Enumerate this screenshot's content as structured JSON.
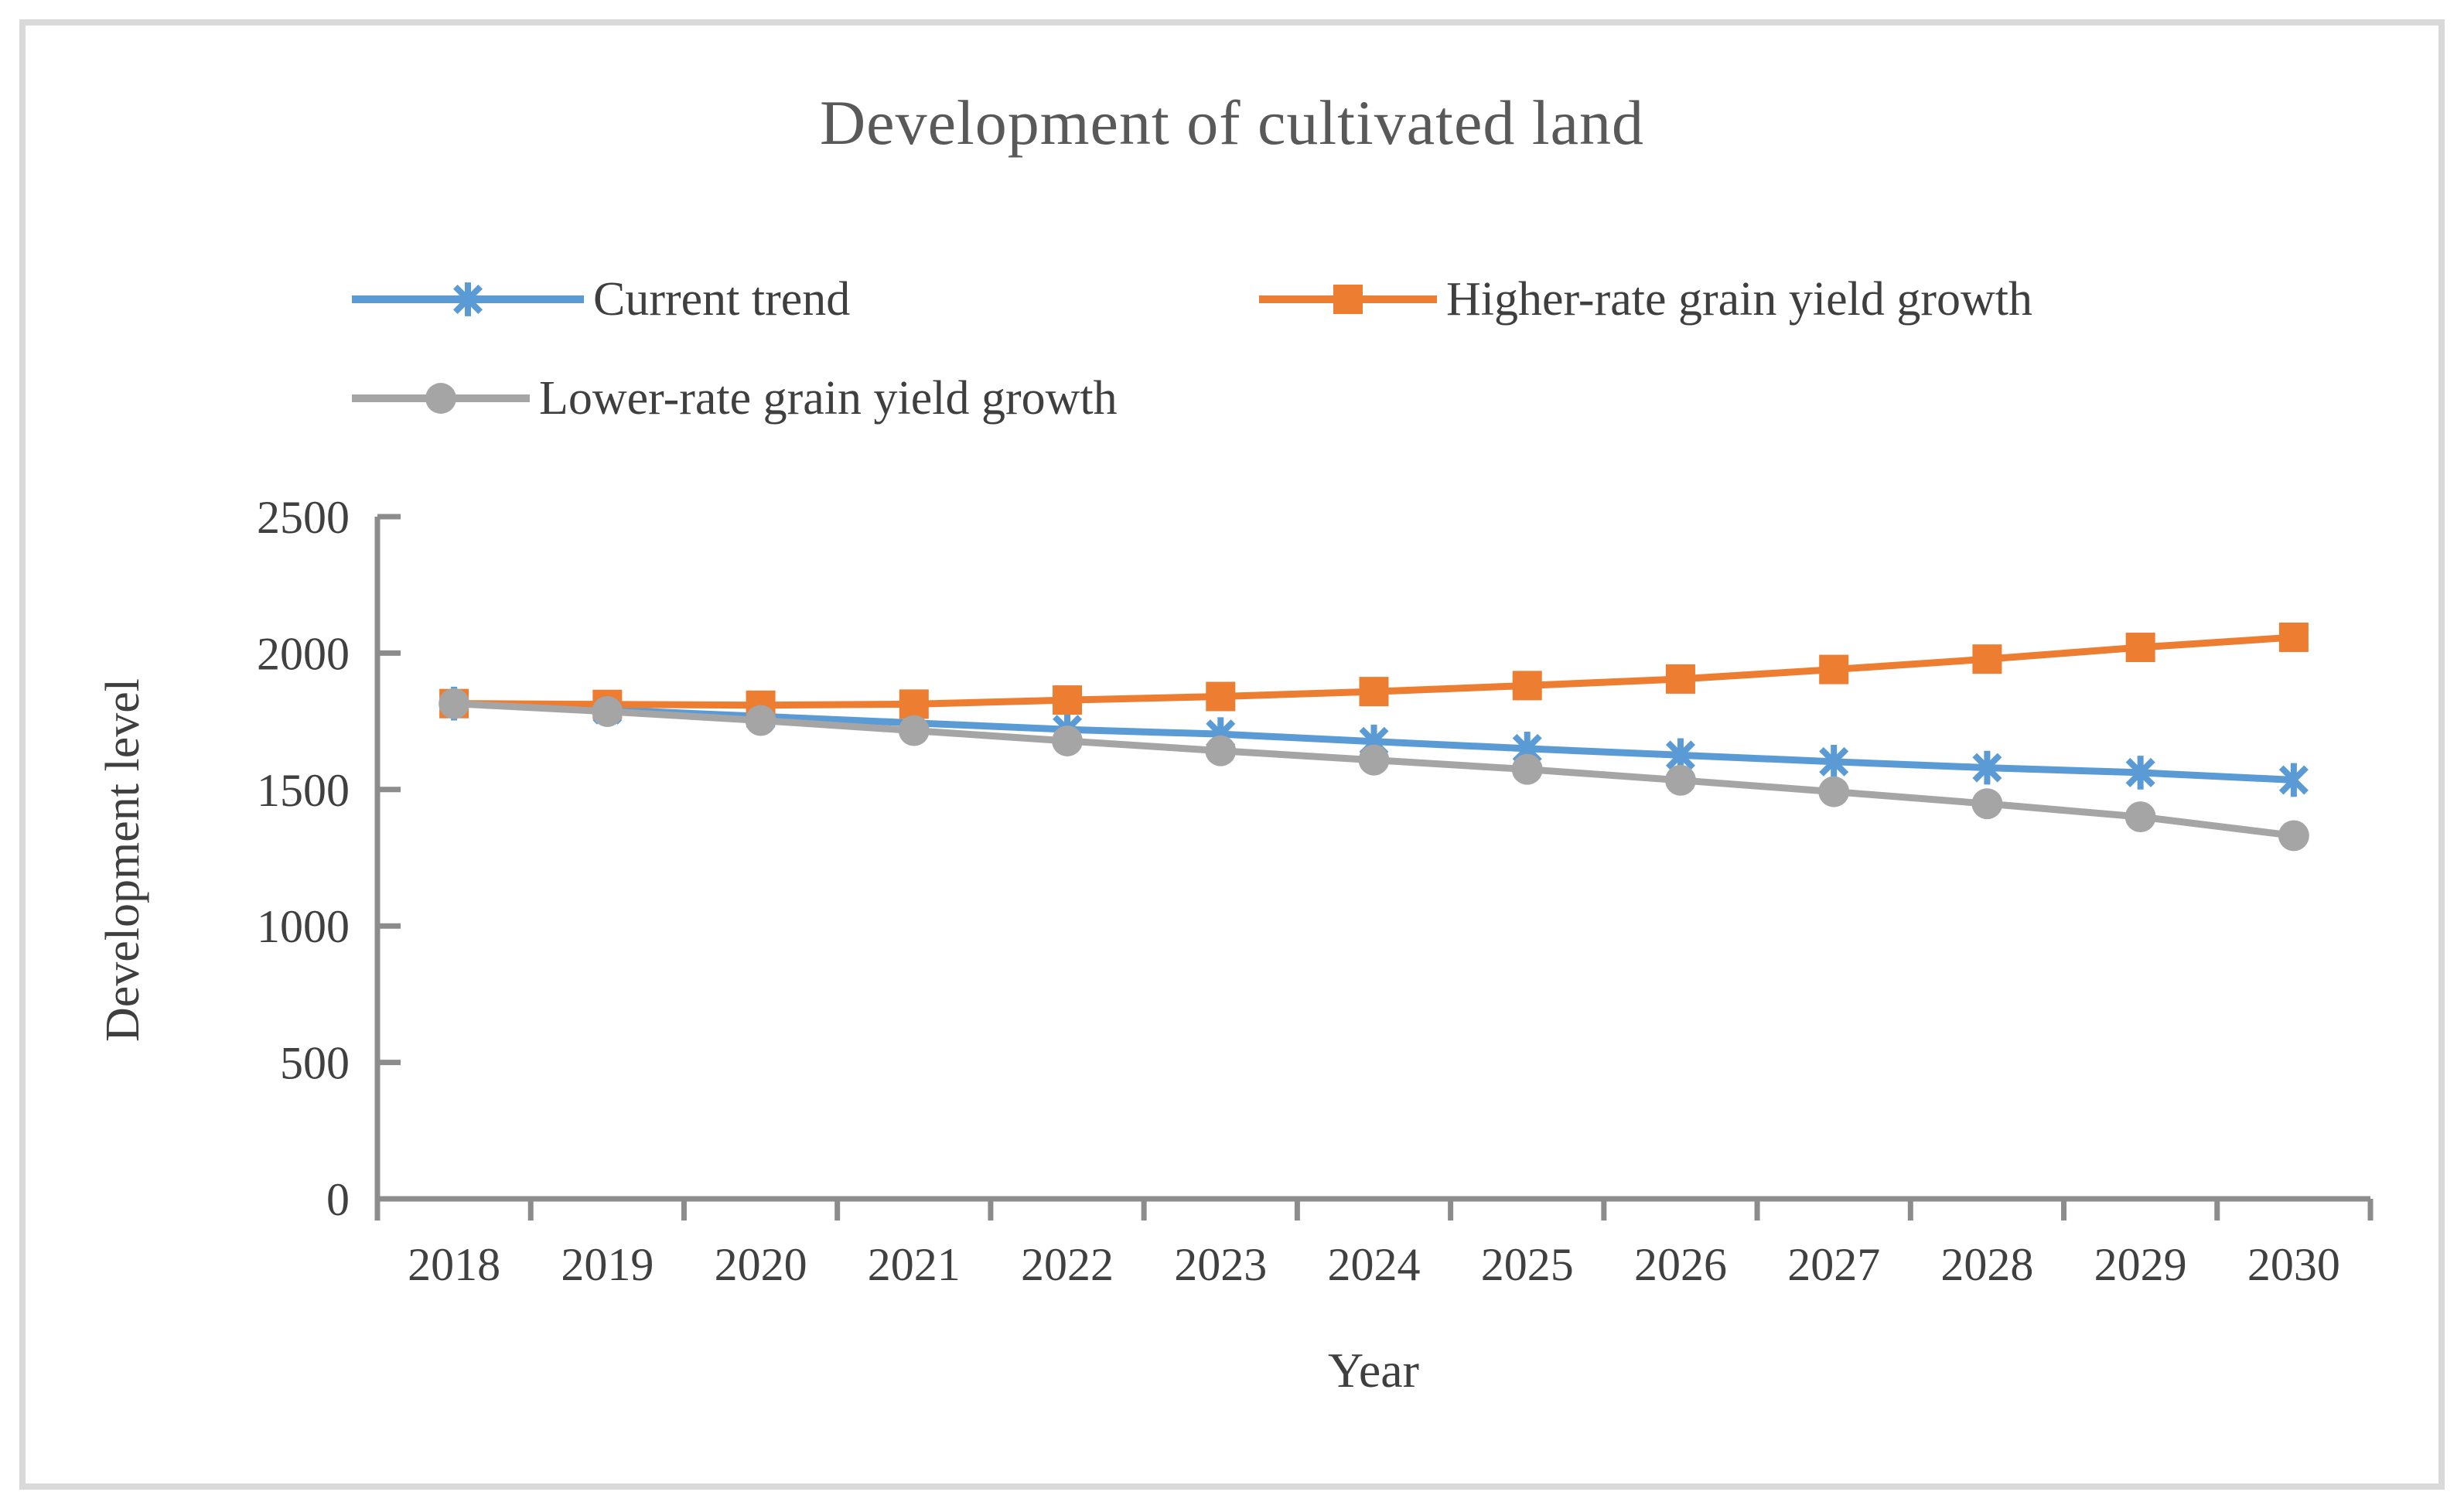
{
  "frame": {
    "background": "#ffffff",
    "border_color": "#d9d9d9"
  },
  "axis_style": {
    "line_color": "#8c8c8c",
    "tick_label_color": "#404040",
    "title_color": "#3f3f3f"
  },
  "chart_data": {
    "type": "line",
    "title": "Development of cultivated land",
    "xlabel": "Year",
    "ylabel": "Development level",
    "x": [
      2018,
      2019,
      2020,
      2021,
      2022,
      2023,
      2024,
      2025,
      2026,
      2027,
      2028,
      2029,
      2030
    ],
    "ylim": [
      0,
      2500
    ],
    "ytick_step": 500,
    "yticks": [
      0,
      500,
      1000,
      1500,
      2000,
      2500
    ],
    "grid": false,
    "legend_position": "top",
    "series": [
      {
        "name": "Current trend",
        "color": "#5b9bd5",
        "marker": "asterisk",
        "values": [
          1815,
          1792,
          1768,
          1744,
          1720,
          1703,
          1676,
          1650,
          1626,
          1602,
          1580,
          1562,
          1535
        ]
      },
      {
        "name": "Higher-rate grain yield growth",
        "color": "#ed7d31",
        "marker": "square",
        "values": [
          1815,
          1812,
          1809,
          1813,
          1828,
          1841,
          1859,
          1881,
          1905,
          1940,
          1978,
          2021,
          2058
        ]
      },
      {
        "name": "Lower-rate grain yield growth",
        "color": "#a5a5a5",
        "marker": "circle",
        "values": [
          1815,
          1786,
          1753,
          1716,
          1678,
          1642,
          1608,
          1574,
          1534,
          1492,
          1448,
          1400,
          1331
        ]
      }
    ]
  }
}
